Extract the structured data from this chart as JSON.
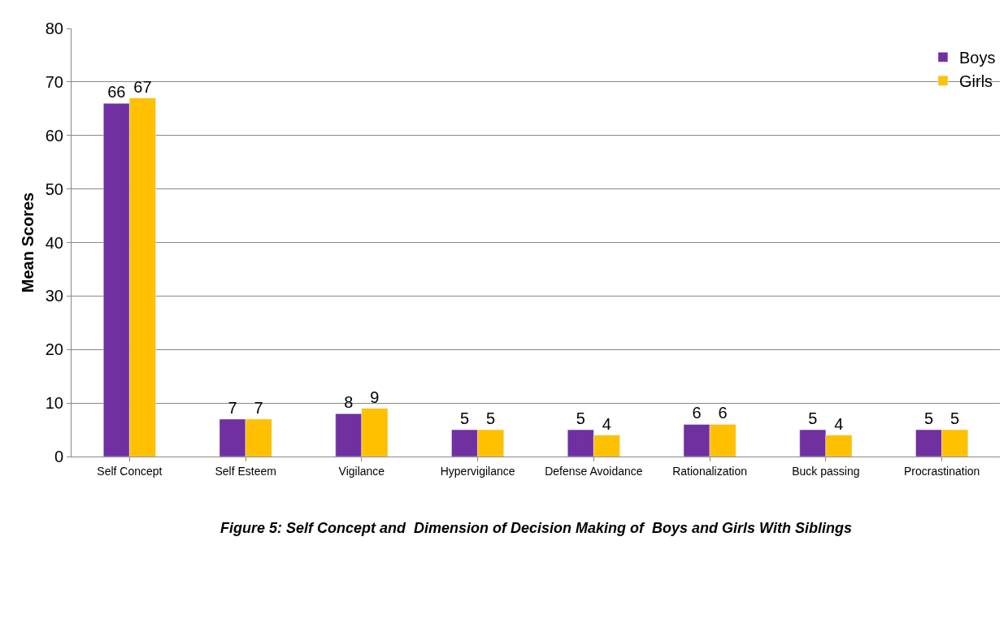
{
  "chart_data": {
    "type": "bar",
    "ylabel": "Mean Scores",
    "categories": [
      "Self Concept",
      "Self Esteem",
      "Vigilance",
      "Hypervigilance",
      "Defense Avoidance",
      "Rationalization",
      "Buck passing",
      "Procrastination"
    ],
    "series": [
      {
        "name": "Boys",
        "color": "#7030a0",
        "values": [
          66,
          7,
          8,
          5,
          5,
          6,
          5,
          5
        ]
      },
      {
        "name": "Girls",
        "color": "#ffc000",
        "values": [
          67,
          7,
          9,
          5,
          4,
          6,
          4,
          5
        ]
      }
    ],
    "ylim": [
      0,
      80
    ],
    "yticks": [
      0,
      10,
      20,
      30,
      40,
      50,
      60,
      70,
      80
    ],
    "grid": "y",
    "legend": "top right",
    "data_labels": true,
    "annotations": [
      "Figure 5: Self Concept and  Dimension of Decision Making of  Boys and Girls With Siblings"
    ]
  }
}
